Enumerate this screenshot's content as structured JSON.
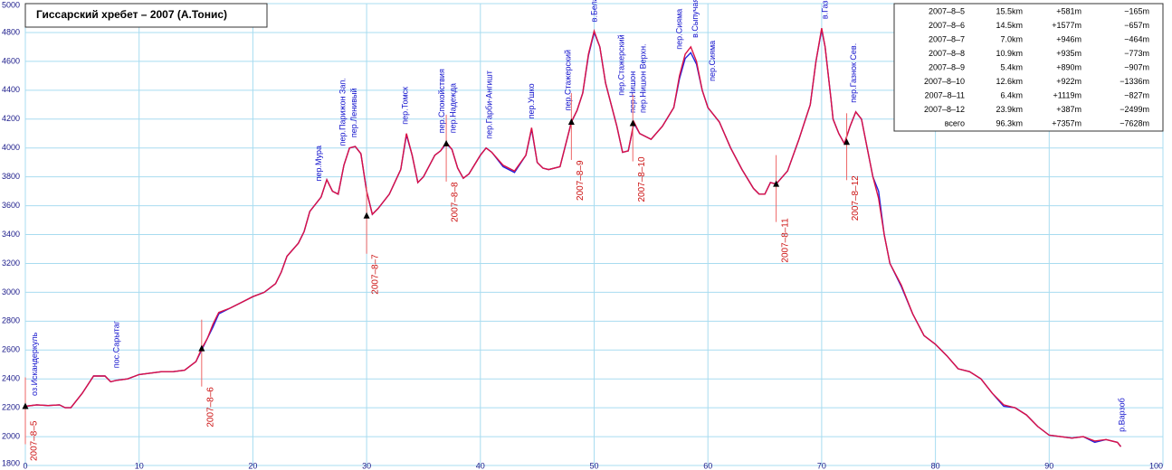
{
  "chart_data": {
    "type": "line",
    "title": "Гиссарский хребет – 2007 (А.Тонис)",
    "x": [
      0,
      1,
      2,
      3,
      3.5,
      4,
      5,
      6,
      7,
      7.5,
      8,
      9,
      10,
      11,
      12,
      13,
      14,
      15,
      15.5,
      16,
      16.5,
      17,
      18,
      19,
      20,
      21,
      22,
      22.5,
      23,
      24,
      24.5,
      25,
      26,
      26.5,
      27,
      27.5,
      28,
      28.5,
      29,
      29.5,
      30,
      30.5,
      31,
      32,
      33,
      33.5,
      34,
      34.5,
      35,
      36,
      36.5,
      37,
      37.5,
      38,
      38.5,
      39,
      40,
      40.5,
      41,
      42,
      43,
      44,
      44.5,
      45,
      45.5,
      46,
      47,
      48,
      48.5,
      49,
      49.5,
      50,
      50.5,
      51,
      52,
      52.5,
      53,
      53.5,
      54,
      55,
      56,
      57,
      57.5,
      58,
      58.5,
      59,
      59.5,
      60,
      61,
      62,
      63,
      64,
      64.5,
      65,
      65.5,
      66,
      67,
      68,
      69,
      69.5,
      70,
      70.3,
      70.8,
      71,
      71.5,
      72,
      72.5,
      73,
      73.5,
      74,
      74.5,
      75,
      75.5,
      76,
      77,
      78,
      79,
      80,
      81,
      82,
      83,
      84,
      85,
      86,
      87,
      88,
      89,
      90,
      91,
      92,
      93,
      94,
      95,
      96,
      96.3
    ],
    "series": [
      {
        "color": "#2222dd",
        "values": [
          2210,
          2220,
          2215,
          2220,
          2200,
          2200,
          2300,
          2420,
          2420,
          2380,
          2390,
          2400,
          2430,
          2440,
          2450,
          2450,
          2460,
          2520,
          2600,
          2680,
          2760,
          2850,
          2890,
          2930,
          2970,
          3000,
          3060,
          3140,
          3250,
          3340,
          3420,
          3560,
          3660,
          3780,
          3700,
          3680,
          3880,
          4000,
          4010,
          3960,
          3700,
          3540,
          3580,
          3680,
          3850,
          4090,
          3950,
          3760,
          3800,
          3950,
          3980,
          4030,
          3990,
          3860,
          3790,
          3820,
          3950,
          4000,
          3970,
          3870,
          3830,
          3950,
          4130,
          3900,
          3860,
          3850,
          3870,
          4180,
          4260,
          4380,
          4640,
          4800,
          4700,
          4450,
          4150,
          3970,
          3980,
          4170,
          4100,
          4060,
          4150,
          4280,
          4480,
          4620,
          4660,
          4580,
          4400,
          4280,
          4180,
          4000,
          3850,
          3720,
          3680,
          3680,
          3760,
          3750,
          3840,
          4060,
          4300,
          4600,
          4820,
          4700,
          4350,
          4200,
          4100,
          4030,
          4150,
          4250,
          4200,
          4000,
          3800,
          3700,
          3400,
          3200,
          3040,
          2850,
          2700,
          2640,
          2560,
          2470,
          2450,
          2400,
          2300,
          2210,
          2200,
          2150,
          2070,
          2010,
          2000,
          1990,
          2000,
          1960,
          1980,
          1960,
          1930
        ]
      },
      {
        "color": "#dd1144",
        "values": [
          2210,
          2220,
          2215,
          2220,
          2200,
          2200,
          2300,
          2420,
          2420,
          2380,
          2390,
          2400,
          2430,
          2440,
          2450,
          2450,
          2460,
          2520,
          2610,
          2680,
          2780,
          2860,
          2890,
          2930,
          2970,
          3000,
          3060,
          3140,
          3250,
          3340,
          3420,
          3560,
          3660,
          3780,
          3700,
          3680,
          3880,
          4000,
          4010,
          3960,
          3700,
          3540,
          3580,
          3680,
          3850,
          4100,
          3950,
          3760,
          3800,
          3950,
          3980,
          4040,
          3990,
          3860,
          3790,
          3820,
          3950,
          4000,
          3970,
          3880,
          3840,
          3950,
          4140,
          3900,
          3860,
          3850,
          3870,
          4180,
          4260,
          4380,
          4650,
          4810,
          4700,
          4450,
          4150,
          3970,
          3980,
          4180,
          4100,
          4060,
          4150,
          4280,
          4500,
          4650,
          4700,
          4600,
          4400,
          4280,
          4180,
          4000,
          3850,
          3720,
          3680,
          3680,
          3760,
          3750,
          3840,
          4060,
          4300,
          4600,
          4830,
          4700,
          4350,
          4200,
          4100,
          4030,
          4150,
          4250,
          4200,
          4000,
          3800,
          3650,
          3400,
          3200,
          3050,
          2850,
          2700,
          2640,
          2560,
          2470,
          2450,
          2400,
          2300,
          2220,
          2200,
          2150,
          2070,
          2010,
          2000,
          1990,
          2000,
          1970,
          1980,
          1960,
          1930
        ]
      }
    ],
    "xlim": [
      0,
      100
    ],
    "xticks": [
      0,
      10,
      20,
      30,
      40,
      50,
      60,
      70,
      80,
      90,
      100
    ],
    "ylim": [
      1800,
      5000
    ],
    "yticks": [
      1800,
      2000,
      2200,
      2400,
      2600,
      2800,
      3000,
      3200,
      3400,
      3600,
      3800,
      4000,
      4200,
      4400,
      4600,
      4800,
      5000
    ],
    "grid": true,
    "days": [
      {
        "label": "2007–8–5",
        "x": 0,
        "y": 2210
      },
      {
        "label": "2007–8–6",
        "x": 15.5,
        "y": 2610
      },
      {
        "label": "2007–8–7",
        "x": 30,
        "y": 3530
      },
      {
        "label": "2007–8–8",
        "x": 37,
        "y": 4030
      },
      {
        "label": "2007–8–9",
        "x": 48,
        "y": 4180
      },
      {
        "label": "2007–8–10",
        "x": 53.4,
        "y": 4170
      },
      {
        "label": "2007–8–11",
        "x": 66,
        "y": 3750
      },
      {
        "label": "2007–8–12",
        "x": 72.2,
        "y": 4040
      }
    ],
    "places": [
      {
        "label": "оз.Искандеркуль",
        "x": 0.6
      },
      {
        "label": "пос.Сарытаг",
        "x": 7.8
      },
      {
        "label": "пер.Мура",
        "x": 25.6
      },
      {
        "label": "пер.Парижон Зап.",
        "x": 27.7
      },
      {
        "label": "пер.Ленивый",
        "x": 28.7
      },
      {
        "label": "пер.Томск",
        "x": 33.2
      },
      {
        "label": "пер.Спокойствия",
        "x": 36.4
      },
      {
        "label": "пер.Надежда",
        "x": 37.4
      },
      {
        "label": "пер.Гарби-Ангишт",
        "x": 40.6
      },
      {
        "label": "пер.Ушко",
        "x": 44.3
      },
      {
        "label": "пер.Стажерский",
        "x": 47.5
      },
      {
        "label": "в.Белая Пирамида",
        "x": 49.8
      },
      {
        "label": "пер.Стажерский",
        "x": 52.2
      },
      {
        "label": "пер.Нишон",
        "x": 53.2
      },
      {
        "label": "пер.Нишон Верхн.",
        "x": 54.1
      },
      {
        "label": "пер.Сияма",
        "x": 57.3
      },
      {
        "label": "в.Сыпучая",
        "x": 58.7
      },
      {
        "label": "пер.Сияма",
        "x": 60.2
      },
      {
        "label": "в.Газнок",
        "x": 70.1
      },
      {
        "label": "пер.Газнок Сев.",
        "x": 72.6
      },
      {
        "label": "р.Варзоб",
        "x": 96.2
      }
    ],
    "table": [
      [
        "2007–8–5",
        "15.5km",
        "+581m",
        "−165m"
      ],
      [
        "2007–8–6",
        "14.5km",
        "+1577m",
        "−657m"
      ],
      [
        "2007–8–7",
        "7.0km",
        "+946m",
        "−464m"
      ],
      [
        "2007–8–8",
        "10.9km",
        "+935m",
        "−773m"
      ],
      [
        "2007–8–9",
        "5.4km",
        "+890m",
        "−907m"
      ],
      [
        "2007–8–10",
        "12.6km",
        "+922m",
        "−1336m"
      ],
      [
        "2007–8–11",
        "6.4km",
        "+1119m",
        "−827m"
      ],
      [
        "2007–8–12",
        "23.9km",
        "+387m",
        "−2499m"
      ],
      [
        "всего",
        "96.3km",
        "+7357m",
        "−7628m"
      ]
    ]
  }
}
